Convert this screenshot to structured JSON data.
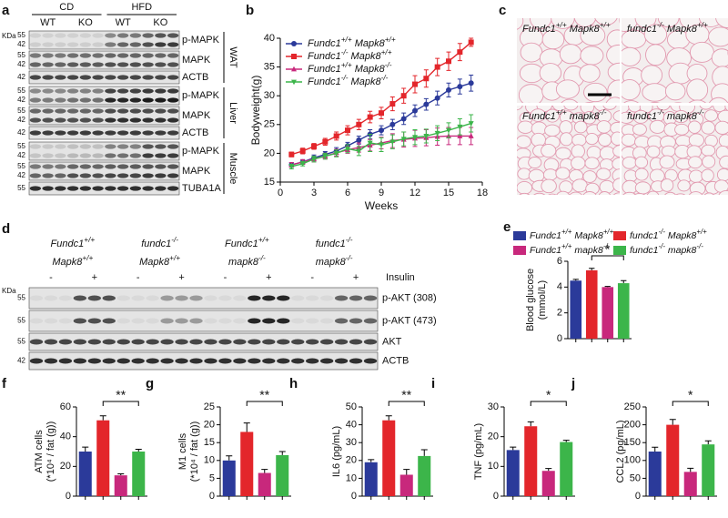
{
  "blots": [
    {
      "panel": "a",
      "kda": "KDa",
      "conditions": [
        "CD",
        "HFD"
      ],
      "genotypes": [
        "WT",
        "KO",
        "WT",
        "KO"
      ],
      "groups": [
        {
          "name": "WAT",
          "rows": [
            {
              "label": "p-MAPK",
              "markers": [
                "55",
                "42"
              ]
            },
            {
              "label": "MAPK",
              "markers": [
                "55",
                "42"
              ]
            },
            {
              "label": "ACTB",
              "markers": [
                "42"
              ]
            }
          ]
        },
        {
          "name": "Liver",
          "rows": [
            {
              "label": "p-MAPK",
              "markers": [
                "55",
                "42"
              ]
            },
            {
              "label": "MAPK",
              "markers": [
                "55",
                "42"
              ]
            },
            {
              "label": "ACTB",
              "markers": [
                "42"
              ]
            }
          ]
        },
        {
          "name": "Muscle",
          "rows": [
            {
              "label": "p-MAPK",
              "markers": [
                "55",
                "42"
              ]
            },
            {
              "label": "MAPK",
              "markers": [
                "55",
                "42"
              ]
            },
            {
              "label": "TUBA1A",
              "markers": [
                "55"
              ]
            }
          ]
        }
      ]
    },
    {
      "panel": "d",
      "kda": "KDa",
      "treatment": "Insulin",
      "groups": [
        {
          "lines": [
            "Fundc1+/+",
            "Mapk8+/+"
          ],
          "insulin": [
            "-",
            "+"
          ]
        },
        {
          "lines": [
            "fundc1-/-",
            "Mapk8+/+"
          ],
          "insulin": [
            "-",
            "+"
          ]
        },
        {
          "lines": [
            "Fundc1+/+",
            "mapk8-/-"
          ],
          "insulin": [
            "-",
            "+"
          ]
        },
        {
          "lines": [
            "fundc1-/-",
            "mapk8-/-"
          ],
          "insulin": [
            "-",
            "+"
          ]
        }
      ],
      "rows": [
        {
          "label": "p-AKT (308)",
          "markers": [
            "55"
          ]
        },
        {
          "label": "p-AKT (473)",
          "markers": [
            "55"
          ]
        },
        {
          "label": "AKT",
          "markers": [
            "55"
          ]
        },
        {
          "label": "ACTB",
          "markers": [
            "42"
          ]
        }
      ]
    }
  ],
  "micrographs": {
    "panel": "c",
    "labels": [
      "Fundc1+/+ Mapk8+/+",
      "fundc1-/- Mapk8+/+",
      "Fundc1+/+ mapk8-/-",
      "fundc1-/- mapk8-/-"
    ]
  },
  "chart_data": [
    {
      "panel": "b",
      "type": "line",
      "xlabel": "Weeks",
      "ylabel": "Bodyweight(g)",
      "legend": "upper left",
      "x": [
        1,
        2,
        3,
        4,
        5,
        6,
        7,
        8,
        9,
        10,
        11,
        12,
        13,
        14,
        15,
        16,
        17
      ],
      "xlim": [
        0,
        18
      ],
      "xticks": [
        0,
        3,
        6,
        9,
        12,
        15,
        18
      ],
      "ylim": [
        15,
        40
      ],
      "yticks": [
        15,
        20,
        25,
        30,
        35,
        40
      ],
      "series": [
        {
          "name": "Fundc1+/+ Mapk8+/+",
          "color": "#2b3a9a",
          "marker": "circle",
          "values": [
            18,
            18.5,
            19.2,
            19.8,
            20.4,
            21.3,
            22.3,
            23.3,
            24,
            25,
            26,
            27.4,
            28.5,
            29.6,
            31,
            31.6,
            32.2
          ],
          "errors": [
            0.4,
            0.4,
            0.5,
            0.5,
            0.6,
            0.6,
            0.7,
            0.8,
            0.8,
            0.9,
            1,
            1,
            1,
            1.2,
            1.2,
            1.3,
            1.4
          ]
        },
        {
          "name": "Fundc1-/- Mapk8+/+",
          "color": "#e3262b",
          "marker": "square",
          "values": [
            19.8,
            20.4,
            21.2,
            22,
            23,
            24,
            25,
            26.3,
            27,
            28.6,
            30,
            32,
            33,
            35,
            36,
            37.6,
            39.3
          ],
          "errors": [
            0.4,
            0.5,
            0.5,
            0.6,
            0.7,
            0.8,
            0.9,
            1,
            1,
            1.2,
            1.3,
            1.5,
            1.5,
            1.5,
            1.6,
            1.5,
            0.7
          ]
        },
        {
          "name": "Fundc1+/+ Mapk8-/-",
          "color": "#c8287c",
          "marker": "triangle",
          "values": [
            18,
            18.5,
            19,
            19.5,
            20.1,
            20.6,
            21,
            21.4,
            21.8,
            22.2,
            22.4,
            22.6,
            22.7,
            22.9,
            23,
            23,
            23
          ],
          "errors": [
            0.4,
            0.4,
            0.5,
            0.5,
            0.6,
            0.6,
            0.8,
            1,
            1,
            1.2,
            1.3,
            1.4,
            1.4,
            1.5,
            1.5,
            1.5,
            1.5
          ]
        },
        {
          "name": "Fundc1-/- Mapk8-/-",
          "color": "#3cb54a",
          "marker": "triangle-down",
          "values": [
            17.7,
            18.2,
            19,
            19.5,
            20,
            20.8,
            20.4,
            21.8,
            21.5,
            22,
            22.5,
            22.8,
            23,
            23.5,
            24,
            24.6,
            25.2
          ],
          "errors": [
            0.4,
            0.4,
            0.5,
            0.5,
            0.6,
            0.7,
            0.8,
            1.5,
            1.2,
            1.2,
            1.2,
            1.3,
            1.2,
            1.3,
            1.3,
            1.4,
            1.5
          ]
        }
      ]
    },
    {
      "panel": "e",
      "type": "bar",
      "ylabel": [
        "Blood glucose",
        "(mmol/L)"
      ],
      "categories": [
        null,
        null,
        null,
        null
      ],
      "values": [
        4.5,
        5.3,
        4.0,
        4.3
      ],
      "errors": [
        0.1,
        0.15,
        0.05,
        0.2
      ],
      "colors": [
        "#2b3a9a",
        "#e3262b",
        "#c8287c",
        "#3cb54a"
      ],
      "legend_labels": [
        "Fundc1+/+ Mapk8+/+",
        "fundc1-/- Mapk8+/+",
        "Fundc1+/+ mapk8-/-",
        "fundc1-/- mapk8-/-"
      ],
      "ylim": [
        0,
        6
      ],
      "yticks": [
        0,
        2,
        4,
        6
      ],
      "significance": "*"
    },
    {
      "panel": "f",
      "type": "bar",
      "ylabel": [
        "ATM cells",
        "(*10⁴ / fat (g))"
      ],
      "categories": [
        null,
        null,
        null,
        null
      ],
      "values": [
        30,
        51,
        14,
        30
      ],
      "errors": [
        3,
        3,
        1,
        1.5
      ],
      "colors": [
        "#2b3a9a",
        "#e3262b",
        "#c8287c",
        "#3cb54a"
      ],
      "ylim": [
        0,
        60
      ],
      "yticks": [
        0,
        20,
        40,
        60
      ],
      "significance": "**"
    },
    {
      "panel": "g",
      "type": "bar",
      "ylabel": [
        "M1 cells",
        "(*10⁴ / fat (g))"
      ],
      "categories": [
        null,
        null,
        null,
        null
      ],
      "values": [
        10,
        18,
        6.5,
        11.5
      ],
      "errors": [
        1.3,
        2.5,
        1,
        1
      ],
      "colors": [
        "#2b3a9a",
        "#e3262b",
        "#c8287c",
        "#3cb54a"
      ],
      "ylim": [
        0,
        25
      ],
      "yticks": [
        0,
        5,
        10,
        15,
        20,
        25
      ],
      "significance": "**"
    },
    {
      "panel": "h",
      "type": "bar",
      "ylabel": [
        "IL6 (pg/mL)"
      ],
      "categories": [
        null,
        null,
        null,
        null
      ],
      "values": [
        19,
        42.5,
        12,
        22.5
      ],
      "errors": [
        1.5,
        2.5,
        3,
        3.5
      ],
      "colors": [
        "#2b3a9a",
        "#e3262b",
        "#c8287c",
        "#3cb54a"
      ],
      "ylim": [
        0,
        50
      ],
      "yticks": [
        0,
        10,
        20,
        30,
        40,
        50
      ],
      "significance": "**"
    },
    {
      "panel": "i",
      "type": "bar",
      "ylabel": [
        "TNF (pg/mL)"
      ],
      "categories": [
        null,
        null,
        null,
        null
      ],
      "values": [
        15.5,
        23.5,
        8.5,
        18.2
      ],
      "errors": [
        1,
        1.5,
        0.8,
        0.6
      ],
      "colors": [
        "#2b3a9a",
        "#e3262b",
        "#c8287c",
        "#3cb54a"
      ],
      "ylim": [
        0,
        30
      ],
      "yticks": [
        0,
        10,
        20,
        30
      ],
      "significance": "*"
    },
    {
      "panel": "j",
      "type": "bar",
      "ylabel": [
        "CCL2 (pg/mL)"
      ],
      "categories": [
        null,
        null,
        null,
        null
      ],
      "values": [
        125,
        200,
        68,
        145
      ],
      "errors": [
        12,
        15,
        10,
        10
      ],
      "colors": [
        "#2b3a9a",
        "#e3262b",
        "#c8287c",
        "#3cb54a"
      ],
      "ylim": [
        0,
        250
      ],
      "yticks": [
        0,
        50,
        100,
        150,
        200,
        250
      ],
      "significance": "*"
    }
  ]
}
